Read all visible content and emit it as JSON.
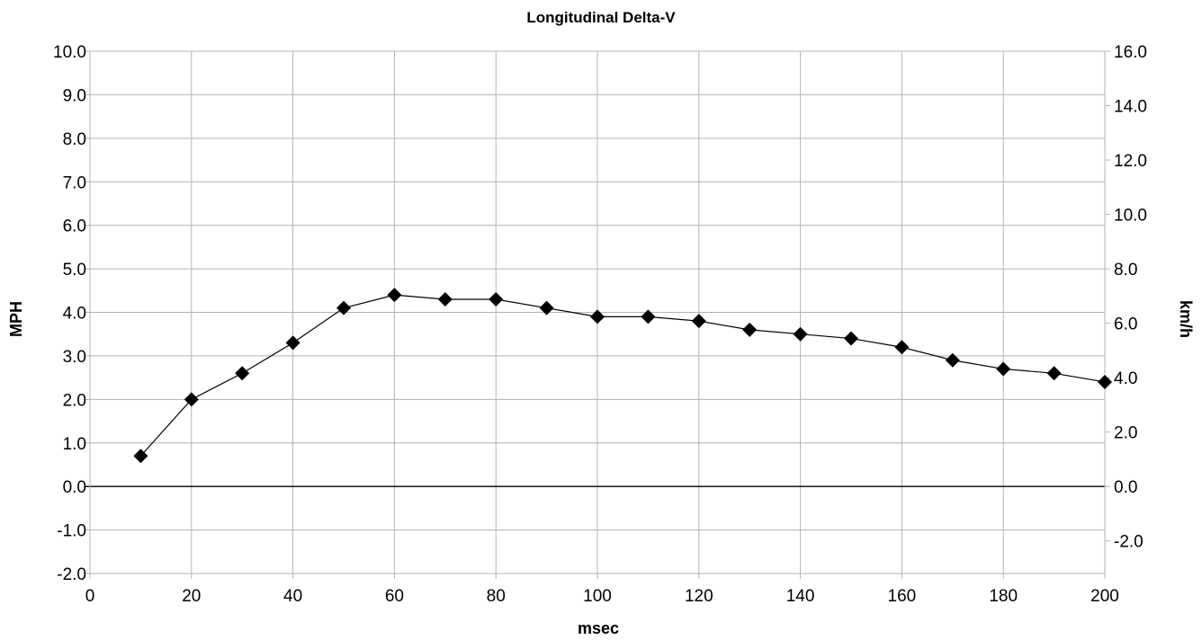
{
  "chart_data": {
    "type": "line",
    "title": "Longitudinal Delta-V",
    "xlabel": "msec",
    "ylabel": "MPH",
    "ylabel_right": "km/h",
    "xlim": [
      0,
      200
    ],
    "ylim": [
      -2,
      10
    ],
    "ylim_right": [
      -3.2,
      16.0
    ],
    "x_ticks": [
      "0",
      "20",
      "40",
      "60",
      "80",
      "100",
      "120",
      "140",
      "160",
      "180",
      "200"
    ],
    "y_ticks": [
      "-2.0",
      "-1.0",
      "0.0",
      "1.0",
      "2.0",
      "3.0",
      "4.0",
      "5.0",
      "6.0",
      "7.0",
      "8.0",
      "9.0",
      "10.0"
    ],
    "y_ticks_right": [
      "-2.0",
      "0.0",
      "2.0",
      "4.0",
      "6.0",
      "8.0",
      "10.0",
      "12.0",
      "14.0",
      "16.0"
    ],
    "grid": true,
    "marker": "diamond",
    "colors": {
      "line": "#000000",
      "grid": "#b3b3b3",
      "zero_line": "#000000"
    },
    "series": [
      {
        "x": [
          10,
          20,
          30,
          40,
          50,
          60,
          70,
          80,
          90,
          100,
          110,
          120,
          130,
          140,
          150,
          160,
          170,
          180,
          190,
          200
        ],
        "values": [
          0.7,
          2.0,
          2.6,
          3.3,
          4.1,
          4.4,
          4.3,
          4.3,
          4.1,
          3.9,
          3.9,
          3.8,
          3.6,
          3.5,
          3.4,
          3.2,
          2.9,
          2.7,
          2.6,
          2.4
        ]
      }
    ]
  }
}
